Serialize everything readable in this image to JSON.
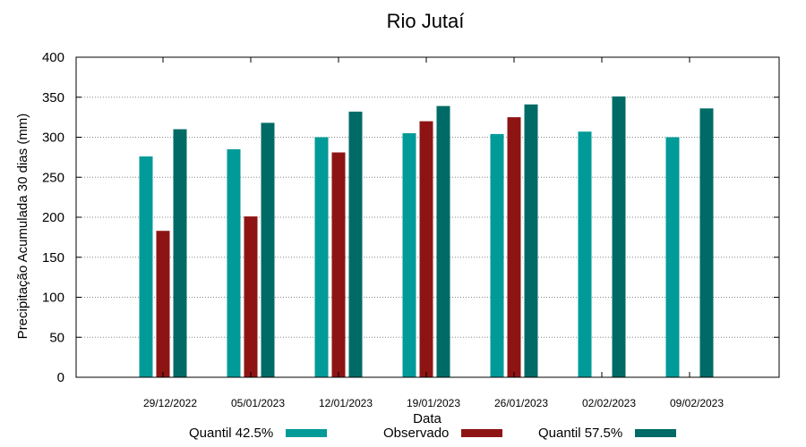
{
  "chart_data": {
    "type": "bar",
    "title": "Rio Jutaí",
    "xlabel": "Data",
    "ylabel": "Precipitação Acumulada 30 dias (mm)",
    "ylim": [
      0,
      400
    ],
    "yticks": [
      0,
      50,
      100,
      150,
      200,
      250,
      300,
      350,
      400
    ],
    "grid": true,
    "legend_position": "bottom",
    "categories": [
      "29/12/2022",
      "05/01/2023",
      "12/01/2023",
      "19/01/2023",
      "26/01/2023",
      "02/02/2023",
      "09/02/2023"
    ],
    "series": [
      {
        "name": "Quantil 42.5%",
        "color": "#009a99",
        "values": [
          276,
          285,
          300,
          305,
          304,
          307,
          300
        ]
      },
      {
        "name": "Observado",
        "color": "#8e1414",
        "values": [
          183,
          201,
          281,
          320,
          325,
          null,
          null
        ]
      },
      {
        "name": "Quantil 57.5%",
        "color": "#006b66",
        "values": [
          310,
          318,
          332,
          339,
          341,
          351,
          336
        ]
      }
    ]
  }
}
